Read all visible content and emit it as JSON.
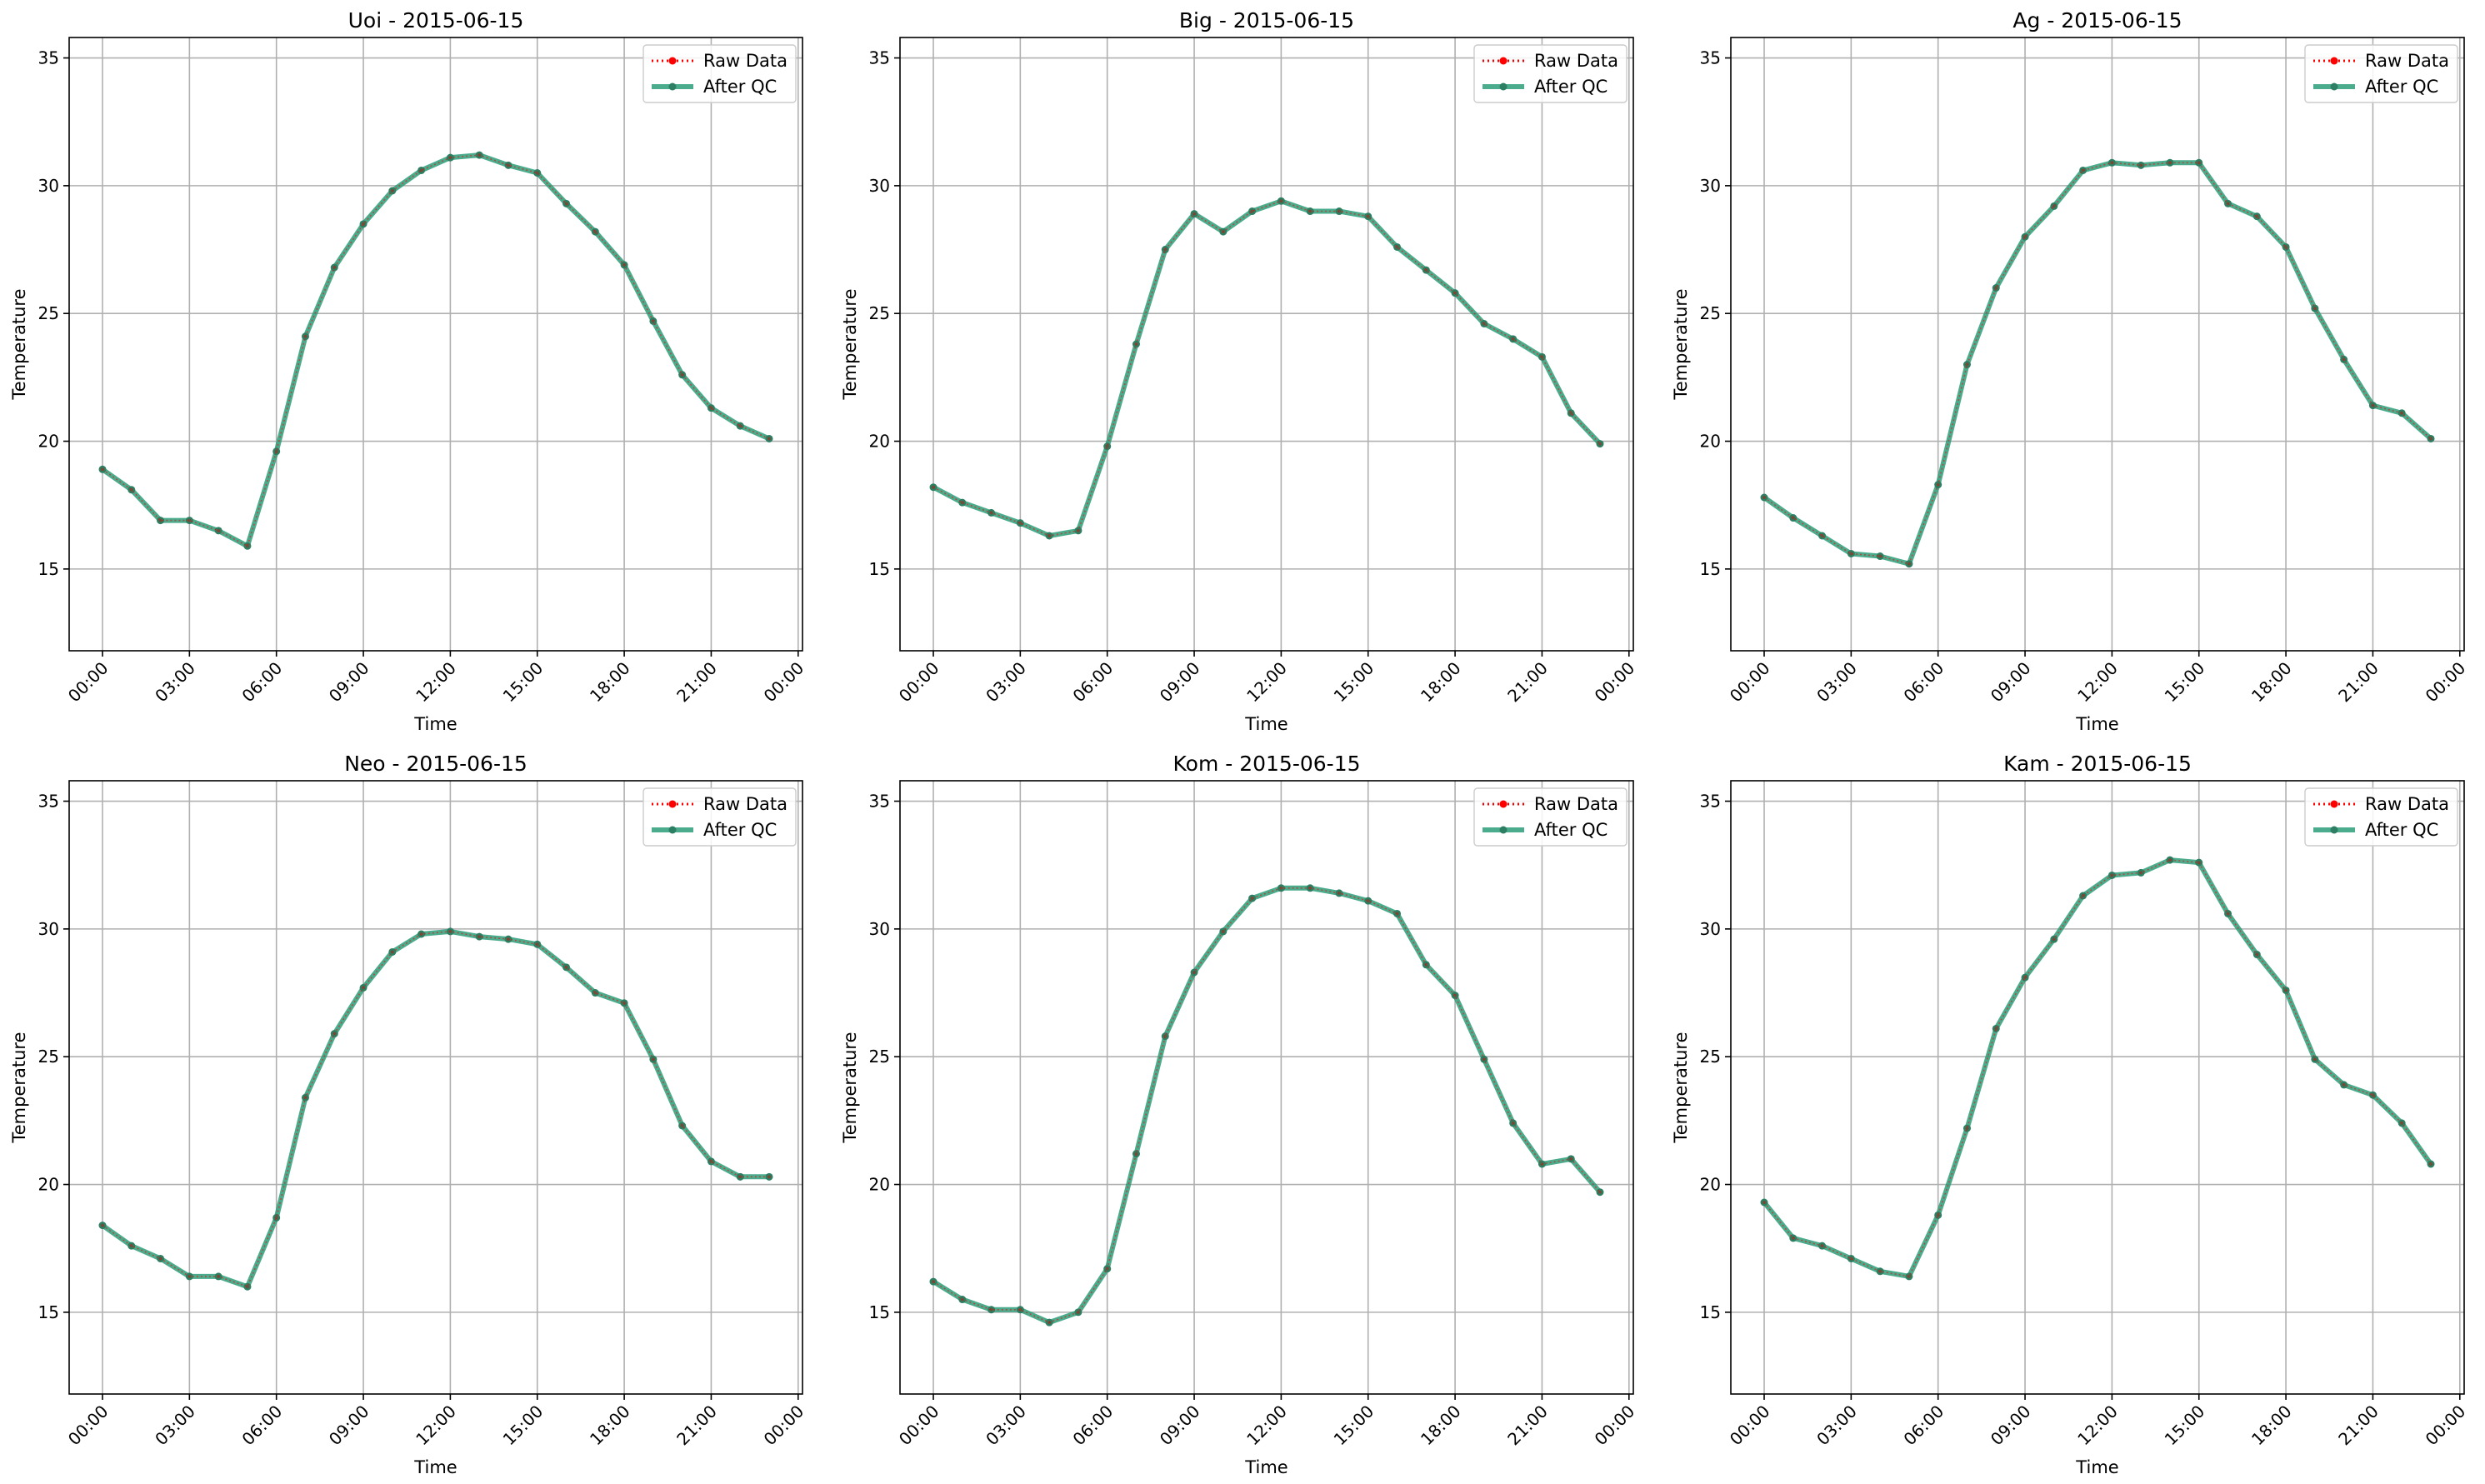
{
  "colors": {
    "raw": "#ff0000",
    "qc": "#2a9d78",
    "qc_point": "#2d7f63",
    "grid": "#b0b0b0",
    "axes": "#000000"
  },
  "chart_data": [
    {
      "type": "line",
      "title": "Uoi - 2015-06-15",
      "xlabel": "Time",
      "ylabel": "Temperature",
      "x_ticks": [
        "00:00",
        "03:00",
        "06:00",
        "09:00",
        "12:00",
        "15:00",
        "18:00",
        "21:00",
        "00:00"
      ],
      "x_range_hours": [
        -1.15,
        24.15
      ],
      "ylim": [
        11.8,
        35.8
      ],
      "y_ticks": [
        15,
        20,
        25,
        30,
        35
      ],
      "grid": true,
      "legend": "top-right",
      "x_hours": [
        0,
        1,
        2,
        3,
        4,
        5,
        6,
        7,
        8,
        9,
        10,
        11,
        12,
        13,
        14,
        15,
        16,
        17,
        18,
        19,
        20,
        21,
        22,
        23
      ],
      "series": [
        {
          "name": "Raw Data",
          "style": "dotted",
          "values": [
            18.9,
            18.1,
            16.9,
            16.9,
            16.5,
            15.9,
            19.6,
            24.1,
            26.8,
            28.5,
            29.8,
            30.6,
            31.1,
            31.2,
            30.8,
            30.5,
            29.3,
            28.2,
            26.9,
            24.7,
            22.6,
            21.3,
            20.6,
            20.1
          ]
        },
        {
          "name": "After QC",
          "style": "solid",
          "values": [
            18.9,
            18.1,
            16.9,
            16.9,
            16.5,
            15.9,
            19.6,
            24.1,
            26.8,
            28.5,
            29.8,
            30.6,
            31.1,
            31.2,
            30.8,
            30.5,
            29.3,
            28.2,
            26.9,
            24.7,
            22.6,
            21.3,
            20.6,
            20.1
          ]
        }
      ]
    },
    {
      "type": "line",
      "title": "Big - 2015-06-15",
      "xlabel": "Time",
      "ylabel": "Temperature",
      "x_ticks": [
        "00:00",
        "03:00",
        "06:00",
        "09:00",
        "12:00",
        "15:00",
        "18:00",
        "21:00",
        "00:00"
      ],
      "x_range_hours": [
        -1.15,
        24.15
      ],
      "ylim": [
        11.8,
        35.8
      ],
      "y_ticks": [
        15,
        20,
        25,
        30,
        35
      ],
      "grid": true,
      "legend": "top-right",
      "x_hours": [
        0,
        1,
        2,
        3,
        4,
        5,
        6,
        7,
        8,
        9,
        10,
        11,
        12,
        13,
        14,
        15,
        16,
        17,
        18,
        19,
        20,
        21,
        22,
        23
      ],
      "series": [
        {
          "name": "Raw Data",
          "style": "dotted",
          "values": [
            18.2,
            17.6,
            17.2,
            16.8,
            16.3,
            16.5,
            19.8,
            23.8,
            27.5,
            28.9,
            28.2,
            29.0,
            29.4,
            29.0,
            29.0,
            28.8,
            27.6,
            26.7,
            25.8,
            24.6,
            24.0,
            23.3,
            21.1,
            19.9
          ]
        },
        {
          "name": "After QC",
          "style": "solid",
          "values": [
            18.2,
            17.6,
            17.2,
            16.8,
            16.3,
            16.5,
            19.8,
            23.8,
            27.5,
            28.9,
            28.2,
            29.0,
            29.4,
            29.0,
            29.0,
            28.8,
            27.6,
            26.7,
            25.8,
            24.6,
            24.0,
            23.3,
            21.1,
            19.9
          ]
        }
      ]
    },
    {
      "type": "line",
      "title": "Ag - 2015-06-15",
      "xlabel": "Time",
      "ylabel": "Temperature",
      "x_ticks": [
        "00:00",
        "03:00",
        "06:00",
        "09:00",
        "12:00",
        "15:00",
        "18:00",
        "21:00",
        "00:00"
      ],
      "x_range_hours": [
        -1.15,
        24.15
      ],
      "ylim": [
        11.8,
        35.8
      ],
      "y_ticks": [
        15,
        20,
        25,
        30,
        35
      ],
      "grid": true,
      "legend": "top-right",
      "x_hours": [
        0,
        1,
        2,
        3,
        4,
        5,
        6,
        7,
        8,
        9,
        10,
        11,
        12,
        13,
        14,
        15,
        16,
        17,
        18,
        19,
        20,
        21,
        22,
        23
      ],
      "series": [
        {
          "name": "Raw Data",
          "style": "dotted",
          "values": [
            17.8,
            17.0,
            16.3,
            15.6,
            15.5,
            15.2,
            18.3,
            23.0,
            26.0,
            28.0,
            29.2,
            30.6,
            30.9,
            30.8,
            30.9,
            30.9,
            29.3,
            28.8,
            27.6,
            25.2,
            23.2,
            21.4,
            21.1,
            20.1
          ]
        },
        {
          "name": "After QC",
          "style": "solid",
          "values": [
            17.8,
            17.0,
            16.3,
            15.6,
            15.5,
            15.2,
            18.3,
            23.0,
            26.0,
            28.0,
            29.2,
            30.6,
            30.9,
            30.8,
            30.9,
            30.9,
            29.3,
            28.8,
            27.6,
            25.2,
            23.2,
            21.4,
            21.1,
            20.1
          ]
        }
      ]
    },
    {
      "type": "line",
      "title": "Neo - 2015-06-15",
      "xlabel": "Time",
      "ylabel": "Temperature",
      "x_ticks": [
        "00:00",
        "03:00",
        "06:00",
        "09:00",
        "12:00",
        "15:00",
        "18:00",
        "21:00",
        "00:00"
      ],
      "x_range_hours": [
        -1.15,
        24.15
      ],
      "ylim": [
        11.8,
        35.8
      ],
      "y_ticks": [
        15,
        20,
        25,
        30,
        35
      ],
      "grid": true,
      "legend": "top-right",
      "x_hours": [
        0,
        1,
        2,
        3,
        4,
        5,
        6,
        7,
        8,
        9,
        10,
        11,
        12,
        13,
        14,
        15,
        16,
        17,
        18,
        19,
        20,
        21,
        22,
        23
      ],
      "series": [
        {
          "name": "Raw Data",
          "style": "dotted",
          "values": [
            18.4,
            17.6,
            17.1,
            16.4,
            16.4,
            16.0,
            18.7,
            23.4,
            25.9,
            27.7,
            29.1,
            29.8,
            29.9,
            29.7,
            29.6,
            29.4,
            28.5,
            27.5,
            27.1,
            24.9,
            22.3,
            20.9,
            20.3,
            20.3
          ]
        },
        {
          "name": "After QC",
          "style": "solid",
          "values": [
            18.4,
            17.6,
            17.1,
            16.4,
            16.4,
            16.0,
            18.7,
            23.4,
            25.9,
            27.7,
            29.1,
            29.8,
            29.9,
            29.7,
            29.6,
            29.4,
            28.5,
            27.5,
            27.1,
            24.9,
            22.3,
            20.9,
            20.3,
            20.3
          ]
        }
      ]
    },
    {
      "type": "line",
      "title": "Kom - 2015-06-15",
      "xlabel": "Time",
      "ylabel": "Temperature",
      "x_ticks": [
        "00:00",
        "03:00",
        "06:00",
        "09:00",
        "12:00",
        "15:00",
        "18:00",
        "21:00",
        "00:00"
      ],
      "x_range_hours": [
        -1.15,
        24.15
      ],
      "ylim": [
        11.8,
        35.8
      ],
      "y_ticks": [
        15,
        20,
        25,
        30,
        35
      ],
      "grid": true,
      "legend": "top-right",
      "x_hours": [
        0,
        1,
        2,
        3,
        4,
        5,
        6,
        7,
        8,
        9,
        10,
        11,
        12,
        13,
        14,
        15,
        16,
        17,
        18,
        19,
        20,
        21,
        22,
        23
      ],
      "series": [
        {
          "name": "Raw Data",
          "style": "dotted",
          "values": [
            16.2,
            15.5,
            15.1,
            15.1,
            14.6,
            15.0,
            16.7,
            21.2,
            25.8,
            28.3,
            29.9,
            31.2,
            31.6,
            31.6,
            31.4,
            31.1,
            30.6,
            28.6,
            27.4,
            24.9,
            22.4,
            20.8,
            21.0,
            19.7
          ]
        },
        {
          "name": "After QC",
          "style": "solid",
          "values": [
            16.2,
            15.5,
            15.1,
            15.1,
            14.6,
            15.0,
            16.7,
            21.2,
            25.8,
            28.3,
            29.9,
            31.2,
            31.6,
            31.6,
            31.4,
            31.1,
            30.6,
            28.6,
            27.4,
            24.9,
            22.4,
            20.8,
            21.0,
            19.7
          ]
        }
      ]
    },
    {
      "type": "line",
      "title": "Kam - 2015-06-15",
      "xlabel": "Time",
      "ylabel": "Temperature",
      "x_ticks": [
        "00:00",
        "03:00",
        "06:00",
        "09:00",
        "12:00",
        "15:00",
        "18:00",
        "21:00",
        "00:00"
      ],
      "x_range_hours": [
        -1.15,
        24.15
      ],
      "ylim": [
        11.8,
        35.8
      ],
      "y_ticks": [
        15,
        20,
        25,
        30,
        35
      ],
      "grid": true,
      "legend": "top-right",
      "x_hours": [
        0,
        1,
        2,
        3,
        4,
        5,
        6,
        7,
        8,
        9,
        10,
        11,
        12,
        13,
        14,
        15,
        16,
        17,
        18,
        19,
        20,
        21,
        22,
        23
      ],
      "series": [
        {
          "name": "Raw Data",
          "style": "dotted",
          "values": [
            19.3,
            17.9,
            17.6,
            17.1,
            16.6,
            16.4,
            18.8,
            22.2,
            26.1,
            28.1,
            29.6,
            31.3,
            32.1,
            32.2,
            32.7,
            32.6,
            30.6,
            29.0,
            27.6,
            24.9,
            23.9,
            23.5,
            22.4,
            20.8
          ]
        },
        {
          "name": "After QC",
          "style": "solid",
          "values": [
            19.3,
            17.9,
            17.6,
            17.1,
            16.6,
            16.4,
            18.8,
            22.2,
            26.1,
            28.1,
            29.6,
            31.3,
            32.1,
            32.2,
            32.7,
            32.6,
            30.6,
            29.0,
            27.6,
            24.9,
            23.9,
            23.5,
            22.4,
            20.8
          ]
        }
      ]
    }
  ]
}
